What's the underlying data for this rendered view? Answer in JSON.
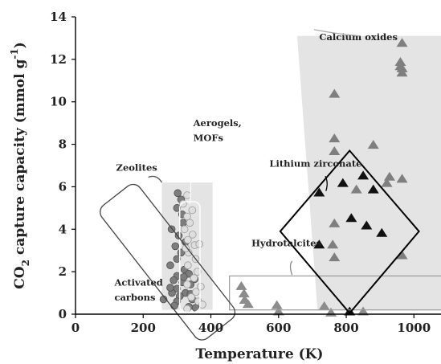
{
  "chart_data": {
    "type": "scatter",
    "title": "",
    "xlabel": "Temperature (K)",
    "ylabel_parts": {
      "pre": "CO",
      "sub": "2",
      "mid": " capture capacity (mmol g",
      "sup": "-1",
      "post": ")"
    },
    "xlim": [
      0,
      1080
    ],
    "ylim": [
      0,
      14
    ],
    "xticks": [
      0,
      200,
      400,
      600,
      800,
      1000
    ],
    "yticks": [
      0,
      2,
      4,
      6,
      8,
      10,
      12,
      14
    ],
    "grid": false,
    "colors": {
      "region_fill": "#e4e4e4",
      "zeolite_marker": "#7d7d7d",
      "mof_marker": "#dedede",
      "hydrotalcite_marker": "#8c8c8c",
      "calcium_marker": "#7f7f7f",
      "lithium_marker": "#111111",
      "outline": "#444444"
    },
    "annotations": [
      {
        "key": "calcium_oxides",
        "text": "Calcium oxides",
        "x": 720,
        "y": 12.9
      },
      {
        "key": "zeolites",
        "text": "Zeolites",
        "x": 120,
        "y": 6.75
      },
      {
        "key": "aerogels",
        "text": "Aerogels,",
        "x": 348,
        "y": 8.85
      },
      {
        "key": "mofs",
        "text": "MOFs",
        "x": 348,
        "y": 8.15
      },
      {
        "key": "lithium_zirconate",
        "text": "Lithium zirconate",
        "x": 573,
        "y": 6.95
      },
      {
        "key": "hydrotalcites",
        "text": "Hydrotalcites",
        "x": 520,
        "y": 3.2
      },
      {
        "key": "activated_1",
        "text": "Activated",
        "x": 115,
        "y": 1.35
      },
      {
        "key": "activated_2",
        "text": "carbons",
        "x": 115,
        "y": 0.65
      }
    ],
    "series": [
      {
        "marker": "circle",
        "points": [
          [
            302,
            5.7
          ],
          [
            312,
            5.4
          ],
          [
            300,
            5.0
          ],
          [
            315,
            4.7
          ],
          [
            318,
            4.3
          ],
          [
            284,
            4.0
          ],
          [
            305,
            3.7
          ],
          [
            325,
            3.4
          ],
          [
            295,
            3.2
          ],
          [
            312,
            2.9
          ],
          [
            300,
            2.6
          ],
          [
            280,
            2.3
          ],
          [
            322,
            2.1
          ],
          [
            335,
            1.9
          ],
          [
            300,
            1.8
          ],
          [
            290,
            1.6
          ],
          [
            316,
            1.5
          ],
          [
            340,
            1.4
          ],
          [
            300,
            1.2
          ],
          [
            285,
            1.0
          ],
          [
            325,
            1.0
          ],
          [
            308,
            0.85
          ],
          [
            345,
            0.7
          ],
          [
            300,
            0.6
          ],
          [
            292,
            0.4
          ],
          [
            335,
            0.35
          ],
          [
            320,
            1.75
          ],
          [
            352,
            1.65
          ],
          [
            280,
            1.25
          ],
          [
            340,
            0.95
          ],
          [
            260,
            0.7
          ],
          [
            355,
            0.3
          ]
        ]
      },
      {
        "marker": "circle",
        "points": [
          [
            330,
            5.6
          ],
          [
            318,
            5.2
          ],
          [
            345,
            4.9
          ],
          [
            330,
            4.6
          ],
          [
            338,
            4.3
          ],
          [
            322,
            4.0
          ],
          [
            346,
            3.75
          ],
          [
            332,
            3.5
          ],
          [
            352,
            3.25
          ],
          [
            334,
            2.9
          ],
          [
            355,
            2.6
          ],
          [
            332,
            2.3
          ],
          [
            360,
            2.0
          ],
          [
            350,
            1.7
          ],
          [
            330,
            1.4
          ],
          [
            370,
            1.3
          ],
          [
            356,
            1.05
          ],
          [
            342,
            0.8
          ],
          [
            363,
            0.6
          ],
          [
            330,
            0.25
          ],
          [
            375,
            0.45
          ],
          [
            326,
            3.1
          ],
          [
            366,
            3.3
          ]
        ]
      },
      {
        "marker": "triangle",
        "points": [
          [
            490,
            1.35
          ],
          [
            498,
            1.0
          ],
          [
            500,
            0.7
          ],
          [
            510,
            0.5
          ],
          [
            595,
            0.45
          ],
          [
            600,
            0.15
          ],
          [
            735,
            0.4
          ],
          [
            755,
            0.1
          ],
          [
            850,
            0.15
          ]
        ]
      },
      {
        "marker": "triangle",
        "points": [
          [
            965,
            12.8
          ],
          [
            960,
            11.9
          ],
          [
            960,
            11.7
          ],
          [
            965,
            11.6
          ],
          [
            965,
            11.4
          ],
          [
            765,
            10.4
          ],
          [
            765,
            8.3
          ],
          [
            765,
            7.7
          ],
          [
            880,
            8.0
          ],
          [
            928,
            6.5
          ],
          [
            965,
            6.4
          ],
          [
            920,
            6.2
          ],
          [
            830,
            5.9
          ],
          [
            765,
            4.3
          ],
          [
            760,
            3.3
          ],
          [
            765,
            2.7
          ],
          [
            965,
            2.8
          ]
        ]
      },
      {
        "marker": "triangle",
        "points": [
          [
            720,
            5.75
          ],
          [
            790,
            6.2
          ],
          [
            850,
            6.55
          ],
          [
            880,
            5.9
          ],
          [
            815,
            4.55
          ],
          [
            860,
            4.2
          ],
          [
            905,
            3.85
          ],
          [
            720,
            3.3
          ],
          [
            810,
            0.15
          ]
        ]
      }
    ]
  }
}
